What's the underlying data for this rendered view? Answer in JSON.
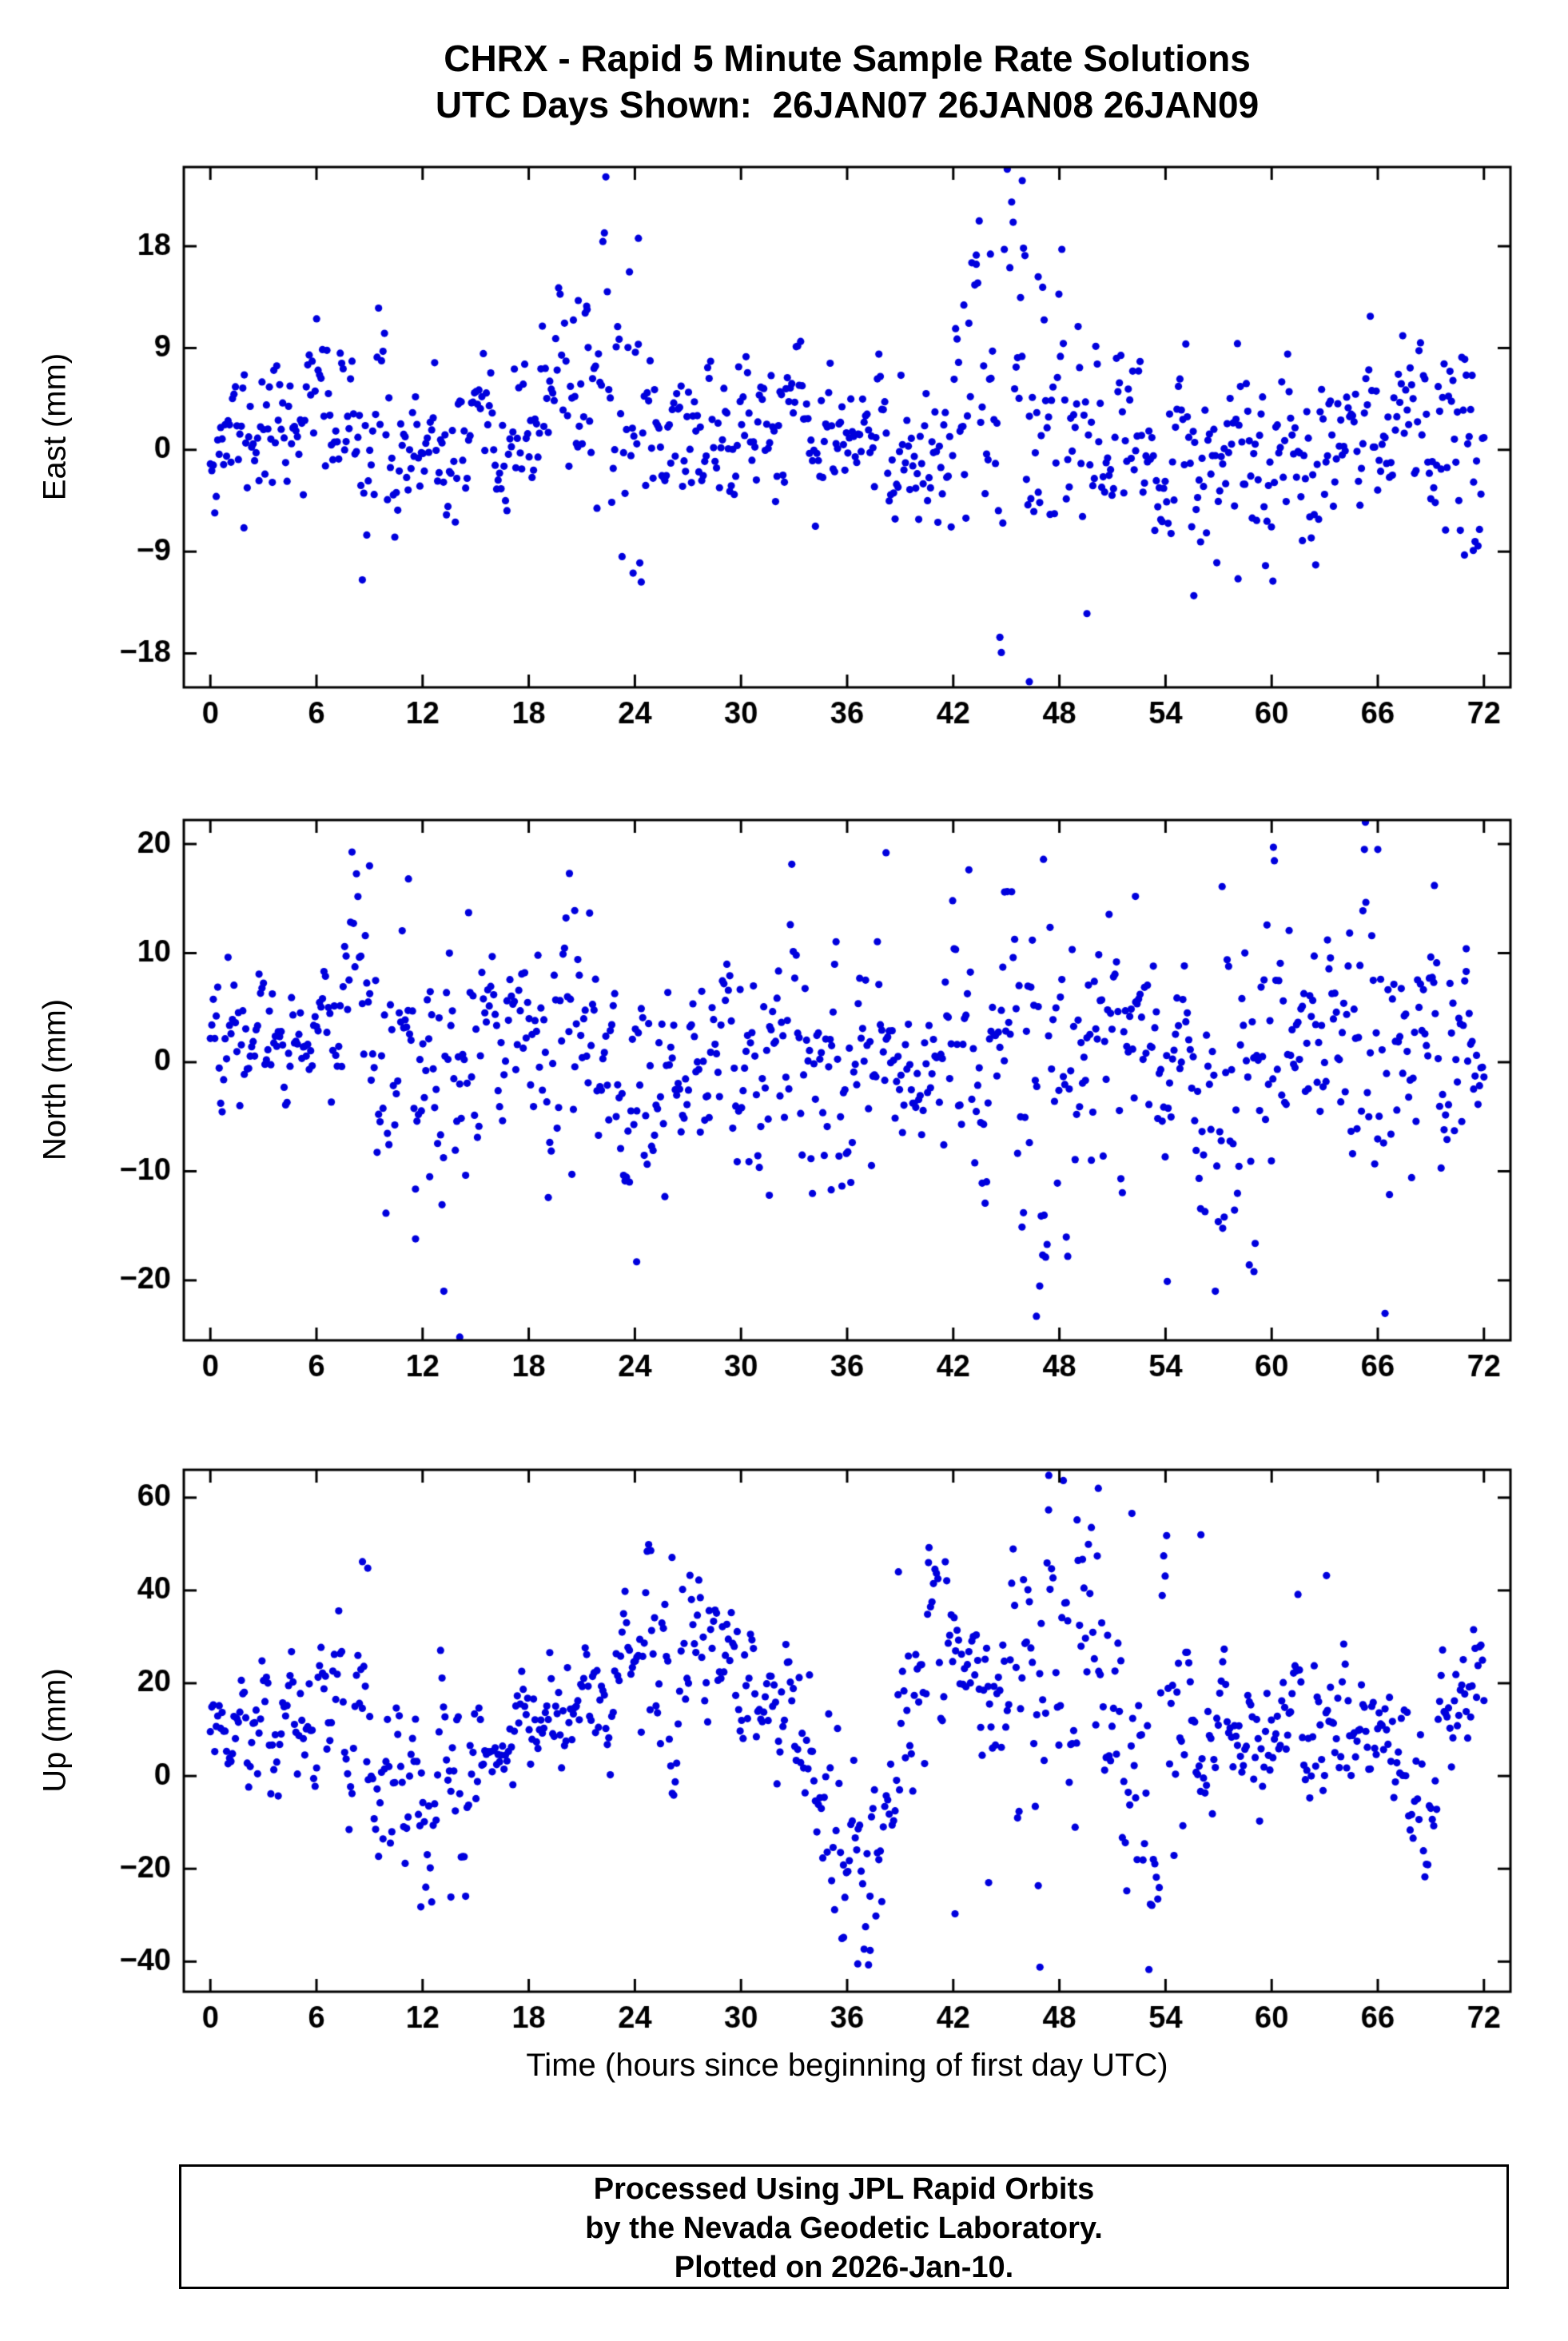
{
  "title": {
    "line1": "CHRX - Rapid 5 Minute Sample Rate Solutions",
    "line2": "UTC Days Shown:  26JAN07 26JAN08 26JAN09"
  },
  "xlabel": "Time (hours since beginning of first day UTC)",
  "footer": {
    "line1": "Processed Using JPL Rapid Orbits",
    "line2": "by the Nevada Geodetic Laboratory.",
    "line3": "Plotted on 2026-Jan-10."
  },
  "marker": {
    "color": "#0000dd",
    "radius": 4.6
  },
  "chart_data": [
    {
      "type": "scatter",
      "panel": "east",
      "ylabel": "East (mm)",
      "xlim": [
        -1.5,
        73.5
      ],
      "ylim": [
        -21,
        25
      ],
      "xticks": [
        0,
        6,
        12,
        18,
        24,
        30,
        36,
        42,
        48,
        54,
        60,
        66,
        72
      ],
      "yticks": [
        -18,
        -9,
        0,
        9,
        18
      ],
      "x_start": 0,
      "x_end": 72,
      "n_points": 864,
      "seed": 11,
      "ar1": 0.45,
      "base_mean": 1.2,
      "base_std": 3.0,
      "wave": {
        "amp": 1.2,
        "period": 24,
        "phase": 14
      },
      "events": [
        {
          "c": 5.5,
          "w": 1.5,
          "shift": 4,
          "extra": 1
        },
        {
          "c": 9.5,
          "w": 1.2,
          "shift": 2,
          "extra": 1.5
        },
        {
          "c": 13.5,
          "w": 3.0,
          "shift": -2.5,
          "extra": 0
        },
        {
          "c": 21.0,
          "w": 1.2,
          "shift": 5,
          "extra": 2
        },
        {
          "c": 24.0,
          "w": 1.0,
          "shift": 1,
          "extra": 4
        },
        {
          "c": 31.0,
          "w": 2.5,
          "shift": 2,
          "extra": 0.5
        },
        {
          "c": 39.0,
          "w": 2.0,
          "shift": -1.5,
          "extra": 1
        },
        {
          "c": 45.5,
          "w": 1.8,
          "shift": 3,
          "extra": 7
        },
        {
          "c": 50.0,
          "w": 1.5,
          "shift": 0,
          "extra": 2
        },
        {
          "c": 57.0,
          "w": 3.0,
          "shift": -3,
          "extra": 1.5
        },
        {
          "c": 62.0,
          "w": 2.0,
          "shift": 1,
          "extra": 1
        },
        {
          "c": 70.5,
          "w": 1.5,
          "shift": 1,
          "extra": 2.5
        }
      ],
      "outlier_points": [
        [
          45.9,
          23.8
        ],
        [
          46.3,
          -20.5
        ],
        [
          24.2,
          18.7
        ],
        [
          23.9,
          -10.9
        ],
        [
          44.1,
          17.3
        ],
        [
          45.2,
          16.1
        ],
        [
          46.8,
          15.3
        ],
        [
          43.3,
          16.4
        ],
        [
          42.6,
          12.8
        ],
        [
          55.6,
          -12.9
        ],
        [
          58.1,
          -11.4
        ],
        [
          70.9,
          -9.3
        ],
        [
          71.4,
          -8.9
        ],
        [
          1.9,
          -6.9
        ],
        [
          20.8,
          13.2
        ],
        [
          21.3,
          12.4
        ]
      ]
    },
    {
      "type": "scatter",
      "panel": "north",
      "ylabel": "North (mm)",
      "xlim": [
        -1.5,
        73.5
      ],
      "ylim": [
        -25.5,
        22.2
      ],
      "xticks": [
        0,
        6,
        12,
        18,
        24,
        30,
        36,
        42,
        48,
        54,
        60,
        66,
        72
      ],
      "yticks": [
        -20,
        -10,
        0,
        10,
        20
      ],
      "x_start": 0,
      "x_end": 72,
      "n_points": 864,
      "seed": 22,
      "ar1": 0.45,
      "base_mean": 1.0,
      "base_std": 3.8,
      "wave": {
        "amp": 1.0,
        "period": 36,
        "phase": 6
      },
      "events": [
        {
          "c": 3.5,
          "w": 3.5,
          "shift": 3,
          "extra": -1.2
        },
        {
          "c": 9.0,
          "w": 0.8,
          "shift": 2,
          "extra": 4
        },
        {
          "c": 13.0,
          "w": 1.2,
          "shift": -6,
          "extra": 5
        },
        {
          "c": 20.3,
          "w": 0.8,
          "shift": 0,
          "extra": 5
        },
        {
          "c": 24.0,
          "w": 1.0,
          "shift": -3,
          "extra": 4
        },
        {
          "c": 33.0,
          "w": 2.0,
          "shift": -2,
          "extra": 3
        },
        {
          "c": 47.0,
          "w": 1.5,
          "shift": -2,
          "extra": 6
        },
        {
          "c": 55.0,
          "w": 12.0,
          "shift": -0.5,
          "extra": 1.5
        },
        {
          "c": 58.5,
          "w": 1.5,
          "shift": -2,
          "extra": 5
        },
        {
          "c": 65.5,
          "w": 1.0,
          "shift": 2,
          "extra": 5
        }
      ],
      "outlier_points": [
        [
          14.1,
          -25.2
        ],
        [
          13.2,
          -21.0
        ],
        [
          11.6,
          -16.2
        ],
        [
          12.4,
          -10.5
        ],
        [
          9.0,
          18.0
        ],
        [
          11.2,
          16.8
        ],
        [
          20.3,
          17.3
        ],
        [
          20.6,
          13.9
        ],
        [
          24.1,
          -18.3
        ],
        [
          31.6,
          -12.2
        ],
        [
          35.1,
          -11.7
        ],
        [
          38.2,
          19.2
        ],
        [
          44.9,
          15.6
        ],
        [
          46.7,
          -23.3
        ],
        [
          47.1,
          18.6
        ],
        [
          52.3,
          15.2
        ],
        [
          54.1,
          -20.1
        ],
        [
          57.2,
          16.1
        ],
        [
          59.0,
          -19.2
        ],
        [
          60.1,
          19.7
        ],
        [
          65.3,
          22.0
        ],
        [
          66.0,
          19.5
        ],
        [
          69.2,
          16.2
        ],
        [
          71.0,
          10.4
        ]
      ]
    },
    {
      "type": "scatter",
      "panel": "up",
      "ylabel": "Up (mm)",
      "xlim": [
        -1.5,
        73.5
      ],
      "ylim": [
        -46.5,
        66
      ],
      "xticks": [
        0,
        6,
        12,
        18,
        24,
        30,
        36,
        42,
        48,
        54,
        60,
        66,
        72
      ],
      "yticks": [
        -40,
        -20,
        0,
        20,
        40,
        60
      ],
      "x_start": 0,
      "x_end": 72,
      "n_points": 864,
      "seed": 33,
      "ar1": 0.55,
      "base_mean": 12,
      "base_std": 6.5,
      "wave": {
        "amp": 5,
        "period": 24,
        "phase": 18
      },
      "events": [
        {
          "c": 1.0,
          "w": 2.0,
          "shift": -8,
          "extra": 0
        },
        {
          "c": 8.5,
          "w": 1.0,
          "shift": 8,
          "extra": 6
        },
        {
          "c": 12.6,
          "w": 1.8,
          "shift": -18,
          "extra": 5
        },
        {
          "c": 25.5,
          "w": 3.0,
          "shift": 8,
          "extra": 5
        },
        {
          "c": 30.5,
          "w": 2.0,
          "shift": 6,
          "extra": 2
        },
        {
          "c": 36.3,
          "w": 1.6,
          "shift": -30,
          "extra": 6
        },
        {
          "c": 41.0,
          "w": 1.5,
          "shift": 14,
          "extra": 6
        },
        {
          "c": 47.8,
          "w": 2.0,
          "shift": 8,
          "extra": 16
        },
        {
          "c": 53.0,
          "w": 1.5,
          "shift": 0,
          "extra": 14
        },
        {
          "c": 62.5,
          "w": 1.0,
          "shift": 5,
          "extra": 8
        },
        {
          "c": 68.5,
          "w": 1.5,
          "shift": -20,
          "extra": 6
        }
      ],
      "outlier_points": [
        [
          47.4,
          64.8
        ],
        [
          50.2,
          62.0
        ],
        [
          49.0,
          55.2
        ],
        [
          52.1,
          56.6
        ],
        [
          56.0,
          52.0
        ],
        [
          36.6,
          -40.5
        ],
        [
          37.3,
          -37.6
        ],
        [
          46.9,
          -41.2
        ],
        [
          35.8,
          -34.8
        ],
        [
          42.1,
          -29.7
        ],
        [
          11.9,
          -28.2
        ],
        [
          13.6,
          -26.1
        ],
        [
          8.6,
          46.2
        ],
        [
          8.9,
          44.8
        ],
        [
          24.9,
          48.6
        ],
        [
          26.1,
          47.1
        ],
        [
          40.6,
          46.0
        ],
        [
          63.1,
          43.2
        ],
        [
          38.9,
          44.0
        ],
        [
          44.0,
          -23.0
        ]
      ]
    }
  ]
}
